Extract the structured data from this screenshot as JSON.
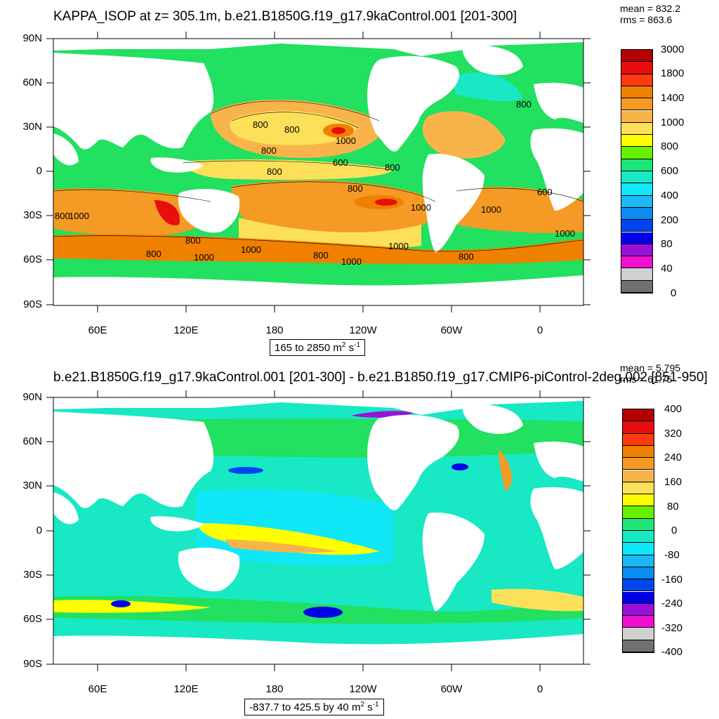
{
  "panels": [
    {
      "id": "top",
      "title": "KAPPA_ISOP at z= 305.1m, b.e21.B1850G.f19_g17.9kaControl.001 [201-300]",
      "stats": {
        "mean": "mean = 832.2",
        "rms": "rms = 863.6"
      },
      "range_text": "165 to 2850 m",
      "range_units": "2",
      "range_tail": " s",
      "range_exp": "-1",
      "lat_labels": [
        "90N",
        "60N",
        "30N",
        "0",
        "30S",
        "60S",
        "90S"
      ],
      "lon_labels": [
        "60E",
        "120E",
        "180",
        "120W",
        "60W",
        "0"
      ],
      "colorbar": {
        "labels": [
          "3000",
          "1800",
          "1400",
          "1000",
          "800",
          "600",
          "400",
          "200",
          "80",
          "40",
          "0"
        ],
        "colors": [
          "#b30000",
          "#e80e0e",
          "#ff3a10",
          "#f08000",
          "#f59a24",
          "#f8b44a",
          "#fde05a",
          "#ffff00",
          "#66f000",
          "#1ee47a",
          "#18e8c4",
          "#10e8f8",
          "#1ab8f4",
          "#0a8cf0",
          "#0046f0",
          "#0000e8",
          "#9a10d8",
          "#f010d0",
          "#d0d0d0",
          "#707070"
        ]
      },
      "contour_labels": [
        "800",
        "800",
        "800",
        "800",
        "1000",
        "600",
        "800",
        "800",
        "1000",
        "600",
        "1000",
        "1000",
        "800",
        "1000",
        "1000",
        "800",
        "800",
        "1000",
        "1000",
        "1000",
        "800",
        "800",
        "800"
      ]
    },
    {
      "id": "bottom",
      "title": "b.e21.B1850G.f19_g17.9kaControl.001 [201-300] - b.e21.B1850.f19_g17.CMIP6-piControl-2deg.002 [851-950]",
      "stats": {
        "mean": "mean = 5.795",
        "rms": "rms = 61.75"
      },
      "range_text": "-837.7 to 425.5 by 40 m",
      "range_units": "2",
      "range_tail": " s",
      "range_exp": "-1",
      "lat_labels": [
        "90N",
        "60N",
        "30N",
        "0",
        "30S",
        "60S",
        "90S"
      ],
      "lon_labels": [
        "60E",
        "120E",
        "180",
        "120W",
        "60W",
        "0"
      ],
      "colorbar": {
        "labels": [
          "400",
          "320",
          "240",
          "160",
          "80",
          "0",
          "-80",
          "-160",
          "-240",
          "-320",
          "-400"
        ],
        "colors": [
          "#b30000",
          "#e80e0e",
          "#ff3a10",
          "#f08000",
          "#f59a24",
          "#f8b44a",
          "#fde05a",
          "#ffff00",
          "#66f000",
          "#1ee47a",
          "#18e8c4",
          "#10e8f8",
          "#1ab8f4",
          "#0a8cf0",
          "#0046f0",
          "#0000e8",
          "#9a10d8",
          "#f010d0",
          "#d0d0d0",
          "#707070"
        ]
      }
    }
  ]
}
